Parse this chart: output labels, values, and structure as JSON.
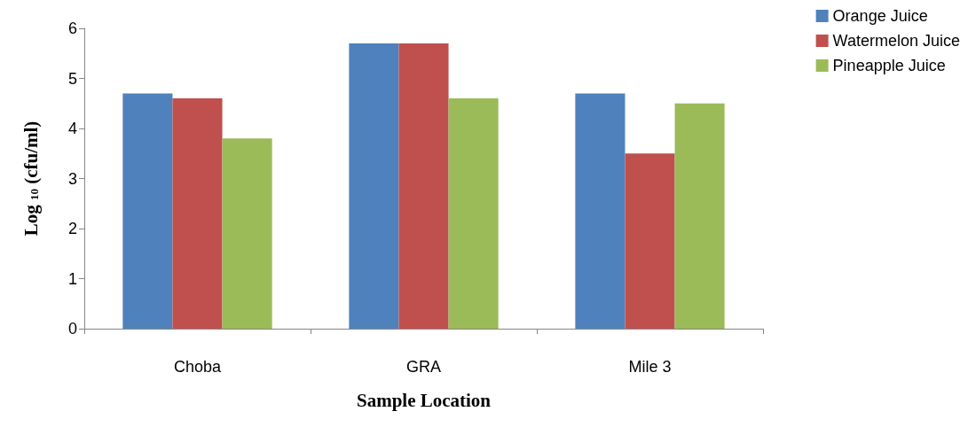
{
  "chart_data": {
    "type": "bar",
    "xlabel": "Sample Location",
    "ylabel": "Log $_{10}$ (cfu/ml)",
    "categories": [
      "Choba",
      "GRA",
      "Mile 3"
    ],
    "series": [
      {
        "name": "Orange Juice",
        "color": "#4f81bd",
        "values": [
          4.7,
          5.7,
          4.7
        ]
      },
      {
        "name": "Watermelon Juice",
        "color": "#c0504d",
        "values": [
          4.6,
          5.7,
          3.5
        ]
      },
      {
        "name": "Pineapple Juice",
        "color": "#9bbb59",
        "values": [
          3.8,
          4.6,
          4.5
        ]
      }
    ],
    "ylim": [
      0,
      6
    ],
    "yticks": [
      0,
      1,
      2,
      3,
      4,
      5,
      6
    ],
    "grid": false,
    "legend": "top right"
  }
}
